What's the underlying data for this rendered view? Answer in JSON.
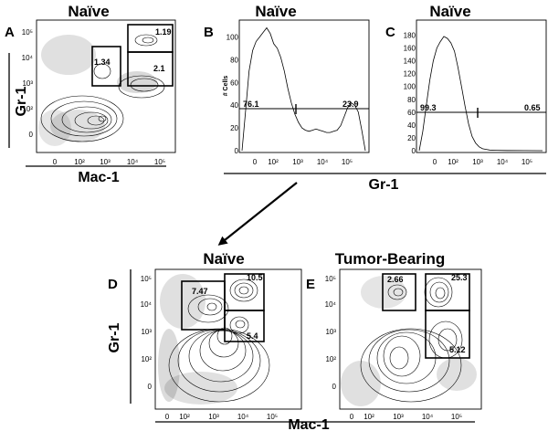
{
  "chart_data": [
    {
      "id": "A",
      "type": "scatter",
      "panel_letter": "A",
      "title": "Naïve",
      "xlabel": "Mac-1",
      "ylabel": "Gr-1",
      "x_ticks": [
        "0",
        "10²",
        "10³",
        "10⁴",
        "10⁵"
      ],
      "y_ticks": [
        "0",
        "10²",
        "10³",
        "10⁴",
        "10⁵"
      ],
      "gates": [
        {
          "label": "1.34",
          "value": 1.34
        },
        {
          "label": "1.19",
          "value": 1.19
        },
        {
          "label": "2.1",
          "value": 2.1
        }
      ]
    },
    {
      "id": "B",
      "type": "line",
      "panel_letter": "B",
      "title": "Naïve",
      "ylabel": "# Cells",
      "x_ticks": [
        "0",
        "10²",
        "10³",
        "10⁴",
        "10⁵"
      ],
      "y_ticks": [
        "0",
        "20",
        "40",
        "60",
        "80",
        "100"
      ],
      "ylim": [
        0,
        110
      ],
      "gate_values": [
        "76.1",
        "23.9"
      ],
      "x": [
        -1.0,
        -0.8,
        -0.6,
        -0.4,
        -0.2,
        0.0,
        0.2,
        0.4,
        0.6,
        0.8,
        1.0,
        1.2,
        1.4,
        1.6,
        1.8,
        2.0,
        2.2,
        2.4,
        2.6,
        2.8,
        3.0,
        3.2,
        3.4,
        3.6,
        3.8,
        4.0,
        4.2,
        4.4,
        4.6,
        4.8,
        5.0,
        5.2,
        5.4,
        5.6,
        5.8,
        6.0
      ],
      "values": [
        0,
        35,
        70,
        88,
        96,
        100,
        104,
        108,
        103,
        94,
        90,
        82,
        70,
        55,
        42,
        32,
        25,
        20,
        18,
        17,
        18,
        19,
        18,
        17,
        16,
        16,
        17,
        18,
        22,
        30,
        38,
        42,
        40,
        34,
        18,
        0
      ]
    },
    {
      "id": "C",
      "type": "line",
      "panel_letter": "C",
      "title": "Naïve",
      "x_ticks": [
        "0",
        "10²",
        "10³",
        "10⁴",
        "10⁵"
      ],
      "y_ticks": [
        "0",
        "20",
        "40",
        "60",
        "80",
        "100",
        "120",
        "140",
        "160",
        "180"
      ],
      "ylim": [
        0,
        195
      ],
      "gate_values": [
        "99.3",
        "0.65"
      ],
      "x": [
        -1.0,
        -0.8,
        -0.6,
        -0.4,
        -0.2,
        0.0,
        0.2,
        0.4,
        0.6,
        0.8,
        1.0,
        1.2,
        1.4,
        1.6,
        1.8,
        2.0,
        2.2,
        2.4,
        2.6,
        2.8,
        3.0,
        3.4,
        4.0,
        5.0,
        6.0
      ],
      "values": [
        0,
        30,
        70,
        110,
        140,
        160,
        170,
        178,
        175,
        168,
        155,
        130,
        100,
        70,
        42,
        22,
        12,
        6,
        3,
        2,
        1,
        0.5,
        0.3,
        0.2,
        0
      ],
      "xlabel": "Gr-1"
    },
    {
      "id": "D",
      "type": "scatter",
      "panel_letter": "D",
      "title": "Naïve",
      "xlabel": "Mac-1",
      "ylabel": "Gr-1",
      "x_ticks": [
        "0",
        "10²",
        "10³",
        "10⁴",
        "10⁵"
      ],
      "y_ticks": [
        "0",
        "10²",
        "10³",
        "10⁴",
        "10⁵"
      ],
      "gates": [
        {
          "label": "7.47",
          "value": 7.47
        },
        {
          "label": "10.5",
          "value": 10.5
        },
        {
          "label": "5.4",
          "value": 5.4
        }
      ]
    },
    {
      "id": "E",
      "type": "scatter",
      "panel_letter": "E",
      "title": "Tumor-Bearing",
      "x_ticks": [
        "0",
        "10²",
        "10³",
        "10⁴",
        "10⁵"
      ],
      "y_ticks": [
        "0",
        "10²",
        "10³",
        "10⁴",
        "10⁵"
      ],
      "gates": [
        {
          "label": "2.66",
          "value": 2.66
        },
        {
          "label": "25.3",
          "value": 25.3
        },
        {
          "label": "5.12",
          "value": 5.12
        }
      ]
    }
  ],
  "shared_labels": {
    "bc_xlabel": "Gr-1",
    "de_xlabel": "Mac-1"
  }
}
